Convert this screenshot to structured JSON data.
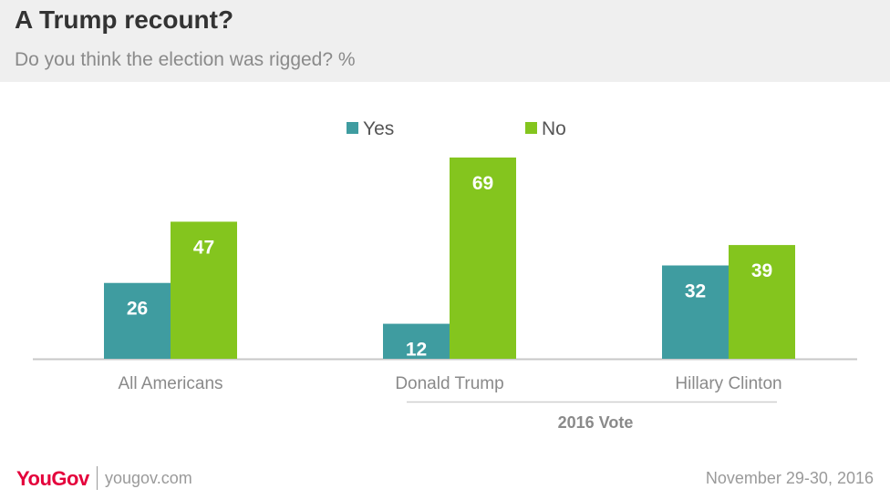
{
  "header": {
    "title": "A Trump recount?",
    "subtitle": "Do you think the election was rigged? %"
  },
  "chart_data": {
    "type": "bar",
    "title": "A Trump recount?",
    "subtitle": "Do you think the election was rigged? %",
    "categories": [
      "All Americans",
      "Donald Trump",
      "Hillary Clinton"
    ],
    "series": [
      {
        "name": "Yes",
        "color": "#3f9ca0",
        "values": [
          26,
          12,
          32
        ]
      },
      {
        "name": "No",
        "color": "#84c51e",
        "values": [
          47,
          69,
          39
        ]
      }
    ],
    "group_label": "2016 Vote",
    "ylim": [
      0,
      69
    ],
    "legend_position": "top-center",
    "grid": false
  },
  "footer": {
    "brand": "YouGov",
    "site": "yougov.com",
    "date": "November 29-30, 2016"
  },
  "colors": {
    "yes": "#3f9ca0",
    "no": "#84c51e",
    "brand": "#e4003b"
  }
}
